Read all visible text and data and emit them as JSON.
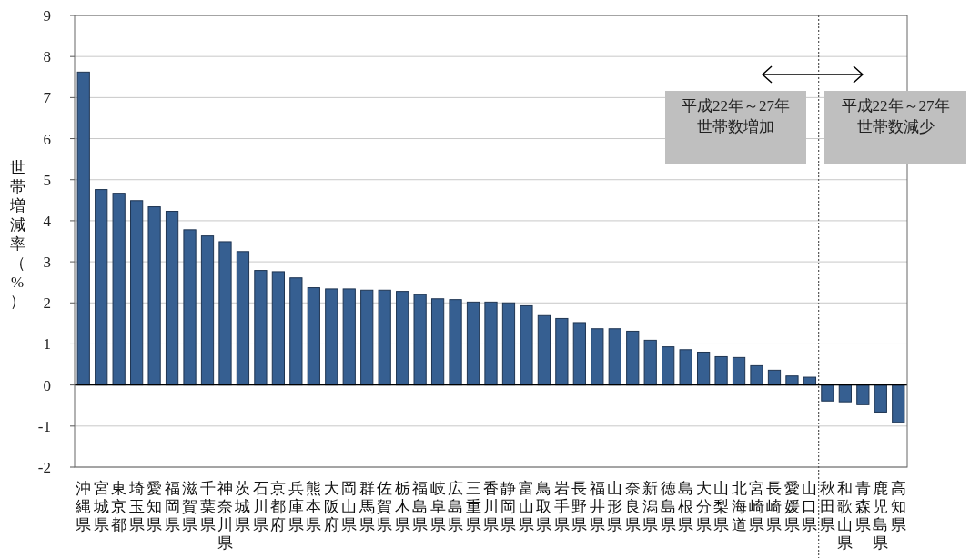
{
  "chart_data": {
    "type": "bar",
    "ylabel": "世帯増減率（%）",
    "categories": [
      "沖縄県",
      "宮城県",
      "東京都",
      "埼玉県",
      "愛知県",
      "福岡県",
      "滋賀県",
      "千葉県",
      "神奈川県",
      "茨城県",
      "石川県",
      "京都府",
      "兵庫県",
      "熊本県",
      "大阪府",
      "岡山県",
      "群馬県",
      "佐賀県",
      "栃木県",
      "福島県",
      "岐阜県",
      "広島県",
      "三重県",
      "香川県",
      "静岡県",
      "富山県",
      "鳥取県",
      "岩手県",
      "長野県",
      "福井県",
      "山形県",
      "奈良県",
      "新潟県",
      "徳島県",
      "島根県",
      "大分県",
      "山梨県",
      "北海道",
      "宮崎県",
      "長崎県",
      "愛媛県",
      "山口県",
      "秋田県",
      "和歌山県",
      "青森県",
      "鹿児島県",
      "高知県"
    ],
    "values": [
      7.62,
      4.76,
      4.67,
      4.49,
      4.34,
      4.23,
      3.78,
      3.63,
      3.49,
      3.25,
      2.79,
      2.76,
      2.61,
      2.37,
      2.34,
      2.34,
      2.31,
      2.31,
      2.28,
      2.2,
      2.1,
      2.08,
      2.02,
      2.02,
      2.0,
      1.93,
      1.69,
      1.62,
      1.52,
      1.37,
      1.37,
      1.31,
      1.09,
      0.93,
      0.86,
      0.8,
      0.69,
      0.67,
      0.47,
      0.36,
      0.22,
      0.19,
      -0.39,
      -0.41,
      -0.48,
      -0.66,
      -0.91
    ],
    "color": "#365f91",
    "ylim": [
      -2,
      9
    ],
    "yticks": [
      -2,
      -1,
      0,
      1,
      2,
      3,
      4,
      5,
      6,
      7,
      8,
      9
    ],
    "grid": "y",
    "annotations": [
      "平成22年～27年",
      "世帯数増加",
      "平成22年～27年",
      "世帯数減少"
    ]
  }
}
